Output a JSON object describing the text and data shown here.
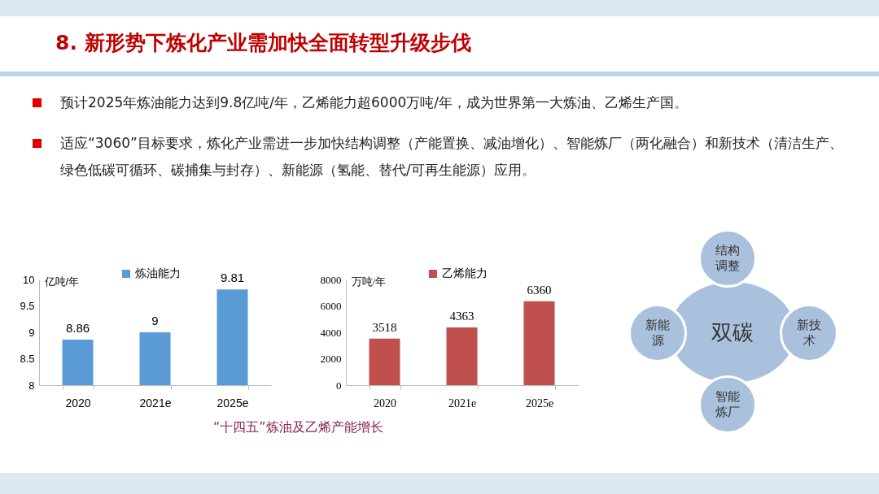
{
  "chart_data": [
    {
      "type": "other",
      "title": "8. 新形势下炼化产业需加快全面转型升级步伐",
      "annotations": [
        "预计2025年炼油能力达到9.8亿吨/年，乙烯能力超6000万吨/年，成为世界第一大炼油、乙烯生产国。",
        "适应“3060”目标要求，炼化产业需进一步加快结构调整（产能置换、减油增化）、智能炼厂（两化融合）和新技术（清洁生产、绿色低碳可循环、碳捕集与封存）、新能源（氢能、替代/可再生能源）应用。"
      ]
    },
    {
      "type": "bar",
      "ylabel": "亿吨/年",
      "categories": [
        "2020",
        "2021e",
        "2025e"
      ],
      "series": [
        {
          "name": "炼油能力",
          "color": "#5b9bd5",
          "values": [
            8.86,
            9,
            9.81
          ]
        }
      ],
      "ylim": [
        8,
        10
      ],
      "yticks": [
        8,
        8.5,
        9,
        9.5,
        10
      ],
      "data_labels": true,
      "legend": "top"
    },
    {
      "type": "bar",
      "ylabel": "万吨/年",
      "categories": [
        "2020",
        "2021e",
        "2025e"
      ],
      "series": [
        {
          "name": "乙烯能力",
          "color": "#c0504d",
          "values": [
            3518,
            4363,
            6360
          ]
        }
      ],
      "ylim": [
        0,
        8000
      ],
      "yticks": [
        0,
        2000,
        4000,
        6000,
        8000
      ],
      "data_labels": true,
      "legend": "top",
      "annotations": [
        "“十四五”炼油及乙烯产能增长"
      ]
    },
    {
      "type": "other",
      "title": "双碳",
      "annotations": [
        "结构调整",
        "新技术",
        "智能炼厂",
        "新能源"
      ]
    }
  ]
}
